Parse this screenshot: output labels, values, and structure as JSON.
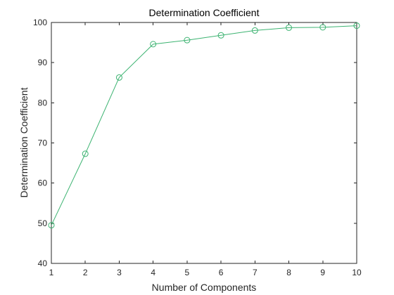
{
  "chart_data": {
    "type": "line",
    "title": "Determination Coefficient",
    "xlabel": "Number of Components",
    "ylabel": "Determination Coefficient",
    "xlim": [
      1,
      10
    ],
    "ylim": [
      40,
      100
    ],
    "xticks": [
      1,
      2,
      3,
      4,
      5,
      6,
      7,
      8,
      9,
      10
    ],
    "yticks": [
      40,
      50,
      60,
      70,
      80,
      90,
      100
    ],
    "grid": false,
    "legend": "none",
    "marker": "circle-open",
    "series": [
      {
        "x": [
          1,
          2,
          3,
          4,
          5,
          6,
          7,
          8,
          9,
          10
        ],
        "values": [
          49.5,
          67.3,
          86.3,
          94.6,
          95.6,
          96.8,
          98.0,
          98.7,
          98.8,
          99.2
        ],
        "color": "#3cb371"
      }
    ]
  }
}
